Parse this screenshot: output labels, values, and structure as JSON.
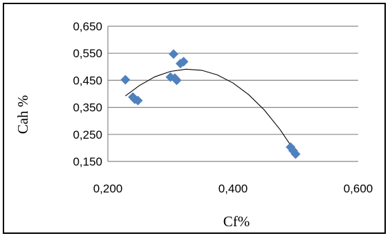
{
  "chart_data": {
    "type": "scatter",
    "xlabel": "Cf%",
    "ylabel": "Cah %",
    "xlim": [
      0.2,
      0.6
    ],
    "ylim": [
      0.15,
      0.65
    ],
    "x_ticks": [
      "0,200",
      "0,400",
      "0,600"
    ],
    "x_tick_values": [
      0.2,
      0.4,
      0.6
    ],
    "y_ticks": [
      "0,150",
      "0,250",
      "0,350",
      "0,450",
      "0,550",
      "0,650"
    ],
    "y_tick_values": [
      0.15,
      0.25,
      0.35,
      0.45,
      0.55,
      0.65
    ],
    "grid": "horizontal",
    "legend": "none",
    "series": [
      {
        "points": [
          {
            "x": 0.228,
            "y": 0.452
          },
          {
            "x": 0.24,
            "y": 0.388
          },
          {
            "x": 0.243,
            "y": 0.38
          },
          {
            "x": 0.248,
            "y": 0.375
          },
          {
            "x": 0.3,
            "y": 0.462
          },
          {
            "x": 0.305,
            "y": 0.547
          },
          {
            "x": 0.307,
            "y": 0.458
          },
          {
            "x": 0.31,
            "y": 0.45
          },
          {
            "x": 0.316,
            "y": 0.512
          },
          {
            "x": 0.321,
            "y": 0.519
          },
          {
            "x": 0.492,
            "y": 0.203
          },
          {
            "x": 0.496,
            "y": 0.19
          },
          {
            "x": 0.5,
            "y": 0.177
          }
        ]
      }
    ],
    "trendline": {
      "type": "polynomial",
      "points": [
        {
          "x": 0.228,
          "y": 0.392
        },
        {
          "x": 0.25,
          "y": 0.43
        },
        {
          "x": 0.275,
          "y": 0.463
        },
        {
          "x": 0.3,
          "y": 0.483
        },
        {
          "x": 0.325,
          "y": 0.491
        },
        {
          "x": 0.35,
          "y": 0.487
        },
        {
          "x": 0.375,
          "y": 0.47
        },
        {
          "x": 0.4,
          "y": 0.44
        },
        {
          "x": 0.425,
          "y": 0.397
        },
        {
          "x": 0.45,
          "y": 0.34
        },
        {
          "x": 0.475,
          "y": 0.268
        },
        {
          "x": 0.49,
          "y": 0.217
        },
        {
          "x": 0.5,
          "y": 0.178
        }
      ]
    },
    "colors": {
      "marker": "#4f81bd",
      "grid": "#868686",
      "trendline": "#000000"
    }
  }
}
